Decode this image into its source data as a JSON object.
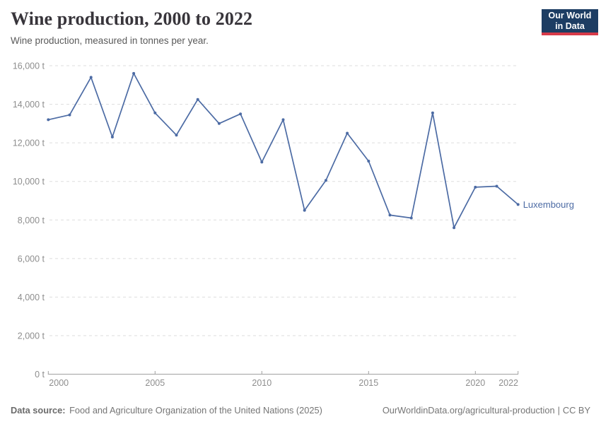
{
  "header": {
    "title": "Wine production, 2000 to 2022",
    "subtitle": "Wine production, measured in tonnes per year.",
    "logo": {
      "line1": "Our World",
      "line2": "in Data"
    }
  },
  "chart_data": {
    "type": "line",
    "title": "Wine production, 2000 to 2022",
    "ylabel": "",
    "xlabel": "",
    "unit": "tonnes",
    "x": [
      2000,
      2001,
      2002,
      2003,
      2004,
      2005,
      2006,
      2007,
      2008,
      2009,
      2010,
      2011,
      2012,
      2013,
      2014,
      2015,
      2016,
      2017,
      2018,
      2019,
      2020,
      2021,
      2022
    ],
    "series": [
      {
        "name": "Luxembourg",
        "color": "#4c6ba4",
        "values": [
          13200,
          13450,
          15400,
          12300,
          15600,
          13550,
          12400,
          14250,
          13000,
          13500,
          11000,
          13200,
          8500,
          10050,
          12500,
          11050,
          8250,
          8100,
          13550,
          7600,
          9700,
          9750,
          8800
        ]
      }
    ],
    "xlim": [
      2000,
      2022
    ],
    "ylim": [
      0,
      16000
    ],
    "grid": "horizontal-dashed",
    "legend_position": "line-end-label",
    "y_ticks": [
      {
        "v": 0,
        "label": "0 t"
      },
      {
        "v": 2000,
        "label": "2,000 t"
      },
      {
        "v": 4000,
        "label": "4,000 t"
      },
      {
        "v": 6000,
        "label": "6,000 t"
      },
      {
        "v": 8000,
        "label": "8,000 t"
      },
      {
        "v": 10000,
        "label": "10,000 t"
      },
      {
        "v": 12000,
        "label": "12,000 t"
      },
      {
        "v": 14000,
        "label": "14,000 t"
      },
      {
        "v": 16000,
        "label": "16,000 t"
      }
    ],
    "x_ticks": [
      {
        "v": 2000,
        "label": "2000"
      },
      {
        "v": 2005,
        "label": "2005"
      },
      {
        "v": 2010,
        "label": "2010"
      },
      {
        "v": 2015,
        "label": "2015"
      },
      {
        "v": 2020,
        "label": "2020"
      },
      {
        "v": 2022,
        "label": "2022"
      }
    ]
  },
  "footer": {
    "datasource_label": "Data source:",
    "datasource_text": "Food and Agriculture Organization of the United Nations (2025)",
    "link": "OurWorldinData.org/agricultural-production",
    "divider": "|",
    "license": "CC BY"
  },
  "colors": {
    "line": "#4c6ba4",
    "gridline": "#dddddd",
    "axis": "#a0a0a0",
    "tick_label": "#8e8e8e",
    "title": "#38353b",
    "subtitle": "#5a5a5a",
    "footer": "#757575",
    "logo_bg": "#1d3d63",
    "logo_red": "#d73a49"
  }
}
